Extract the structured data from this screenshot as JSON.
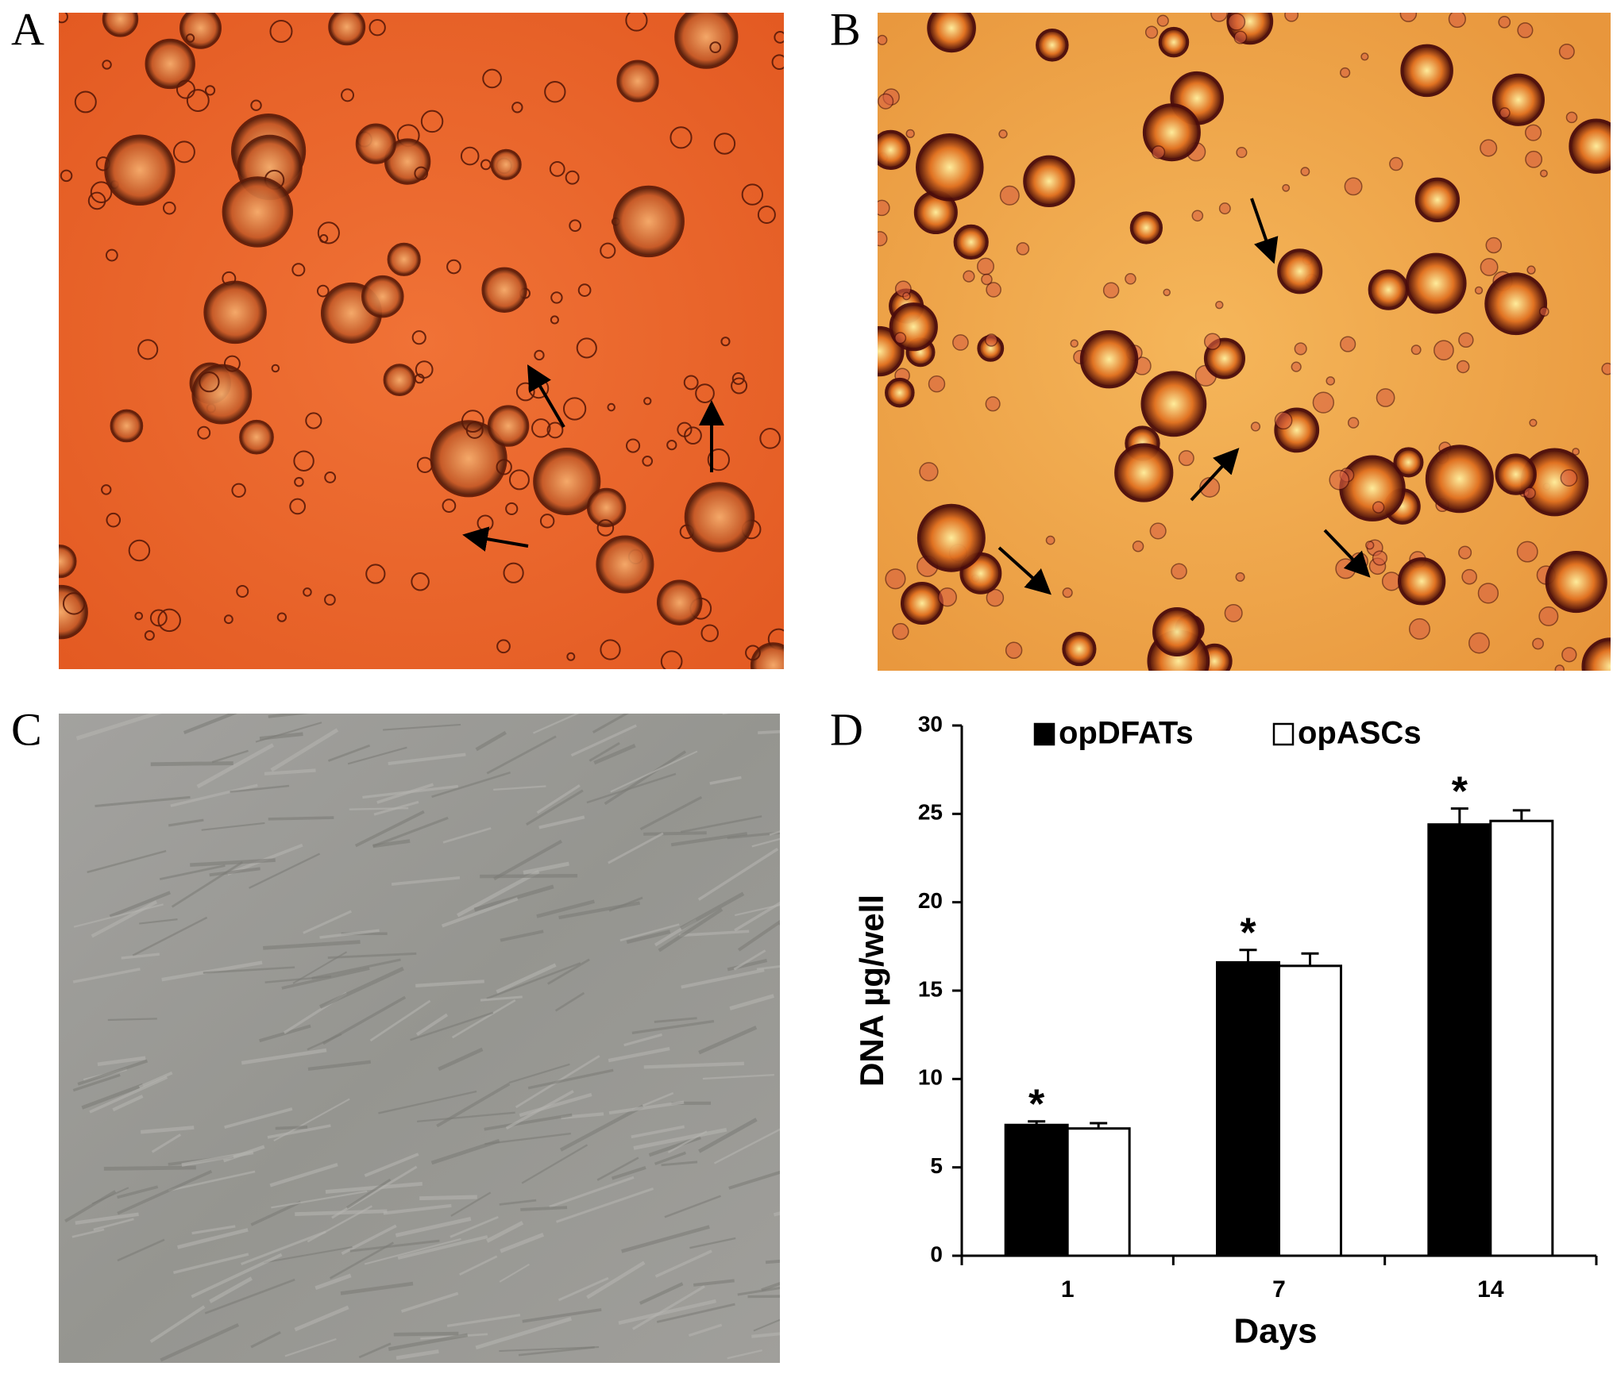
{
  "figure": {
    "panel_labels": [
      "A",
      "B",
      "C",
      "D"
    ]
  },
  "chart_data": {
    "type": "bar",
    "categories": [
      "1",
      "7",
      "14"
    ],
    "series": [
      {
        "name": "opDFATs",
        "color": "#000000",
        "values": [
          7.4,
          16.6,
          24.4
        ],
        "errors": [
          0.2,
          0.7,
          0.9
        ]
      },
      {
        "name": "opASCs",
        "color": "#ffffff",
        "values": [
          7.2,
          16.4,
          24.6
        ],
        "errors": [
          0.3,
          0.7,
          0.6
        ]
      }
    ],
    "significance": [
      "*",
      "*",
      "*"
    ],
    "ylim": [
      0,
      30
    ],
    "yticks": [
      0,
      5,
      10,
      15,
      20,
      25,
      30
    ],
    "y_label": "DNA µg/well",
    "x_label": "Days",
    "grid": false
  }
}
